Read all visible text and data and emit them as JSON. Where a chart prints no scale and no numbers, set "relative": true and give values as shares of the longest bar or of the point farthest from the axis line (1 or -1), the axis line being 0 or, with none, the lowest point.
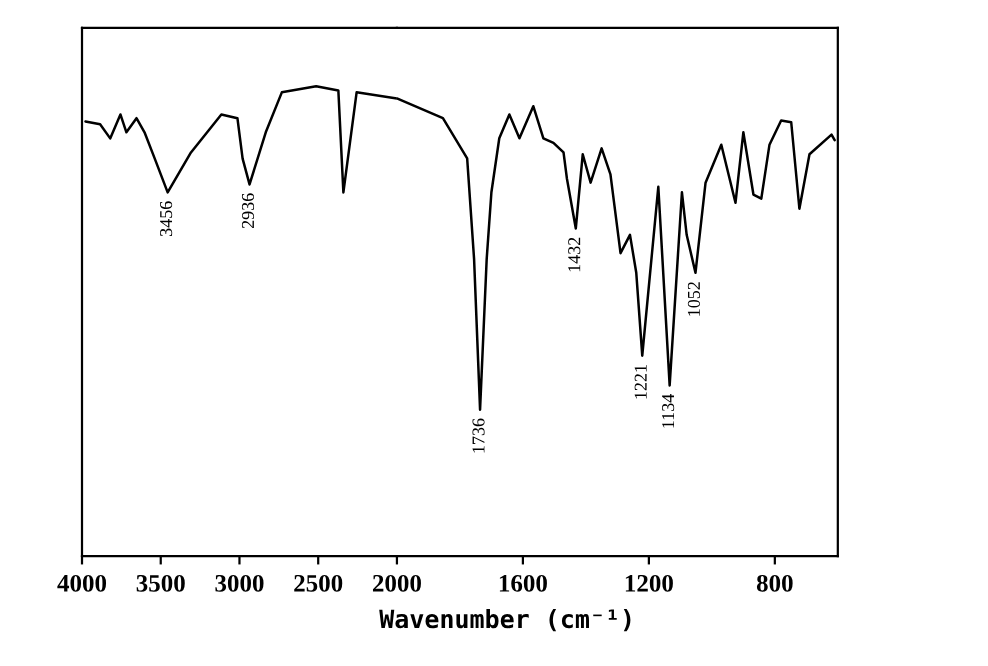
{
  "chart_data": [
    {
      "type": "line",
      "relative": true,
      "xlim": [
        4000,
        2000
      ],
      "xticks": [
        4000,
        3500,
        3000,
        2500,
        2000
      ],
      "tick_labels": "x",
      "grid": false,
      "legend": false,
      "marker": "none",
      "line_style": "solid",
      "series": [
        {
          "color": "#000000",
          "x": [
            3978,
            3885,
            3821,
            3756,
            3718,
            3654,
            3603,
            3538,
            3456,
            3308,
            3115,
            3013,
            2980,
            2936,
            2833,
            2731,
            2513,
            2372,
            2340,
            2256,
            2000
          ],
          "values": [
            0.925,
            0.919,
            0.889,
            0.94,
            0.902,
            0.932,
            0.902,
            0.846,
            0.774,
            0.859,
            0.94,
            0.932,
            0.846,
            0.791,
            0.902,
            0.987,
            1.0,
            0.991,
            0.774,
            0.987,
            0.974
          ]
        }
      ],
      "annotations": [
        {
          "text": "3456",
          "x": 3456,
          "y": 0.774
        },
        {
          "text": "2936",
          "x": 2936,
          "y": 0.791
        }
      ]
    },
    {
      "type": "line",
      "relative": true,
      "xlabel": "Wavenumber (cm⁻¹)",
      "xlim": [
        2000,
        600
      ],
      "xticks": [
        1600,
        1200,
        800
      ],
      "tick_labels": "x",
      "grid": false,
      "legend": false,
      "marker": "none",
      "line_style": "solid",
      "series": [
        {
          "color": "#000000",
          "x": [
            2000,
            1854,
            1777,
            1755,
            1736,
            1715,
            1700,
            1675,
            1643,
            1611,
            1567,
            1535,
            1503,
            1471,
            1460,
            1432,
            1410,
            1385,
            1350,
            1322,
            1290,
            1260,
            1240,
            1221,
            1170,
            1134,
            1095,
            1080,
            1052,
            1020,
            970,
            925,
            900,
            868,
            843,
            817,
            780,
            748,
            722,
            690,
            620,
            610
          ],
          "values": [
            1.0,
            0.957,
            0.869,
            0.649,
            0.32,
            0.649,
            0.795,
            0.913,
            0.965,
            0.913,
            0.983,
            0.913,
            0.903,
            0.882,
            0.824,
            0.716,
            0.878,
            0.816,
            0.891,
            0.834,
            0.662,
            0.702,
            0.619,
            0.438,
            0.807,
            0.373,
            0.795,
            0.702,
            0.619,
            0.816,
            0.899,
            0.772,
            0.926,
            0.79,
            0.781,
            0.899,
            0.952,
            0.948,
            0.759,
            0.878,
            0.921,
            0.909
          ]
        }
      ],
      "annotations": [
        {
          "text": "1736",
          "x": 1736,
          "y": 0.32
        },
        {
          "text": "1432",
          "x": 1432,
          "y": 0.716
        },
        {
          "text": "1221",
          "x": 1221,
          "y": 0.438
        },
        {
          "text": "1134",
          "x": 1134,
          "y": 0.373
        },
        {
          "text": "1052",
          "x": 1052,
          "y": 0.619
        }
      ]
    }
  ]
}
